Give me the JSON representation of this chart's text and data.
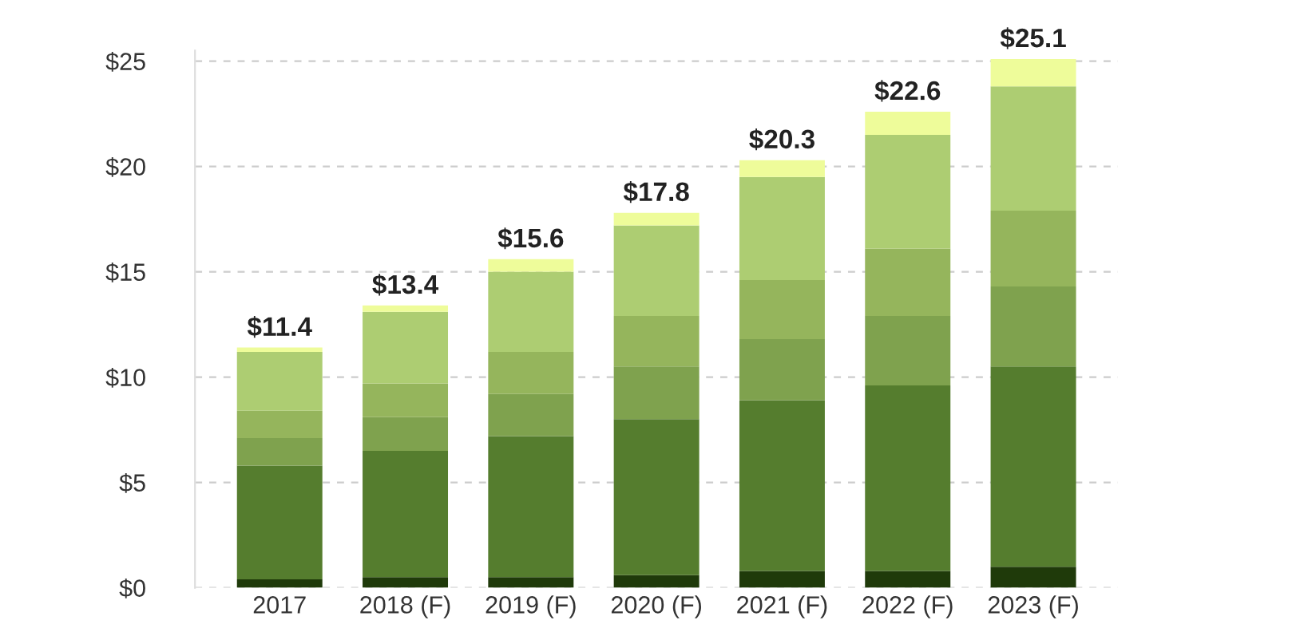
{
  "chart_data": {
    "type": "bar",
    "stacked": true,
    "categories": [
      "2017",
      "2018 (F)",
      "2019 (F)",
      "2020 (F)",
      "2021 (F)",
      "2022 (F)",
      "2023 (F)"
    ],
    "series": [
      {
        "color": "#1f3a0a",
        "values": [
          0.4,
          0.5,
          0.5,
          0.6,
          0.8,
          0.8,
          1.0
        ]
      },
      {
        "color": "#557d2e",
        "values": [
          5.4,
          6.0,
          6.7,
          7.4,
          8.1,
          8.8,
          9.5
        ]
      },
      {
        "color": "#7fa24e",
        "values": [
          1.3,
          1.6,
          2.0,
          2.5,
          2.9,
          3.3,
          3.8
        ]
      },
      {
        "color": "#95b55c",
        "values": [
          1.3,
          1.6,
          2.0,
          2.4,
          2.8,
          3.2,
          3.6
        ]
      },
      {
        "color": "#adcd72",
        "values": [
          2.8,
          3.4,
          3.8,
          4.3,
          4.9,
          5.4,
          5.9
        ]
      },
      {
        "color": "#eefc9a",
        "values": [
          0.2,
          0.3,
          0.6,
          0.6,
          0.8,
          1.1,
          1.3
        ]
      }
    ],
    "totals": [
      "$11.4",
      "$13.4",
      "$15.6",
      "$17.8",
      "$20.3",
      "$22.6",
      "$25.1"
    ],
    "ylim": [
      0,
      25.5
    ],
    "yticks": [
      {
        "value": 0,
        "label": "$0"
      },
      {
        "value": 5,
        "label": "$5"
      },
      {
        "value": 10,
        "label": "$10"
      },
      {
        "value": 15,
        "label": "$15"
      },
      {
        "value": 20,
        "label": "$20"
      },
      {
        "value": 25,
        "label": "$25"
      }
    ],
    "grid": "y"
  }
}
